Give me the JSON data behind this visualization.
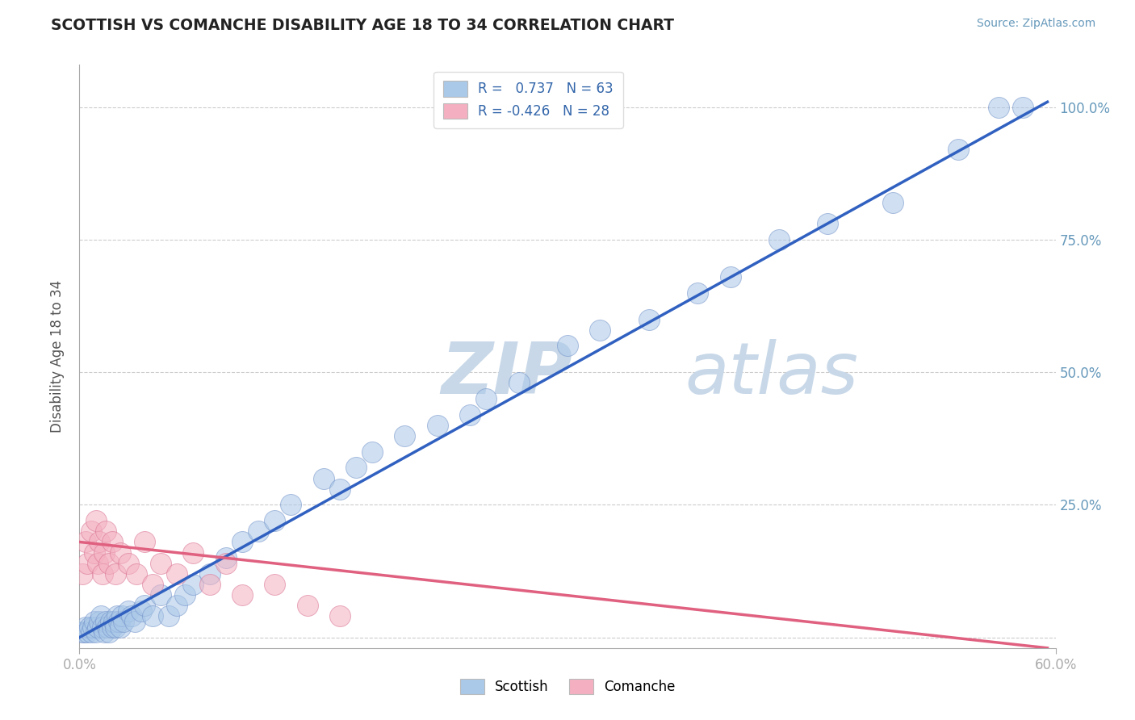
{
  "title": "SCOTTISH VS COMANCHE DISABILITY AGE 18 TO 34 CORRELATION CHART",
  "source_text": "Source: ZipAtlas.com",
  "ylabel": "Disability Age 18 to 34",
  "xlim": [
    0.0,
    0.6
  ],
  "ylim": [
    -0.02,
    1.08
  ],
  "ytick_values": [
    0.0,
    0.25,
    0.5,
    0.75,
    1.0
  ],
  "watermark": "ZIPatlas",
  "watermark_color": "#c8d8e8",
  "scottish_color": "#aac8e8",
  "comanche_color": "#f4b0c0",
  "scottish_edge_color": "#7090c8",
  "comanche_edge_color": "#d87090",
  "scottish_line_color": "#3060c0",
  "comanche_line_color": "#e06080",
  "grid_color": "#cccccc",
  "background_color": "#ffffff",
  "legend_scottish_label": "R =   0.737   N = 63",
  "legend_comanche_label": "R = -0.426   N = 28",
  "scottish_line_x": [
    0.0,
    0.595
  ],
  "scottish_line_y": [
    0.0,
    1.01
  ],
  "comanche_line_x": [
    0.0,
    0.595
  ],
  "comanche_line_y": [
    0.18,
    -0.02
  ],
  "scottish_scatter_x": [
    0.002,
    0.003,
    0.004,
    0.005,
    0.006,
    0.007,
    0.008,
    0.009,
    0.01,
    0.011,
    0.012,
    0.013,
    0.014,
    0.015,
    0.016,
    0.017,
    0.018,
    0.019,
    0.02,
    0.021,
    0.022,
    0.023,
    0.024,
    0.025,
    0.026,
    0.027,
    0.03,
    0.032,
    0.034,
    0.038,
    0.04,
    0.045,
    0.05,
    0.055,
    0.06,
    0.065,
    0.07,
    0.08,
    0.09,
    0.1,
    0.11,
    0.12,
    0.13,
    0.15,
    0.16,
    0.17,
    0.18,
    0.2,
    0.22,
    0.24,
    0.25,
    0.27,
    0.3,
    0.32,
    0.35,
    0.38,
    0.4,
    0.43,
    0.46,
    0.5,
    0.54,
    0.565,
    0.58
  ],
  "scottish_scatter_y": [
    0.01,
    0.01,
    0.02,
    0.01,
    0.02,
    0.01,
    0.02,
    0.03,
    0.01,
    0.02,
    0.03,
    0.04,
    0.02,
    0.01,
    0.03,
    0.02,
    0.01,
    0.03,
    0.02,
    0.03,
    0.02,
    0.04,
    0.03,
    0.02,
    0.04,
    0.03,
    0.05,
    0.04,
    0.03,
    0.05,
    0.06,
    0.04,
    0.08,
    0.04,
    0.06,
    0.08,
    0.1,
    0.12,
    0.15,
    0.18,
    0.2,
    0.22,
    0.25,
    0.3,
    0.28,
    0.32,
    0.35,
    0.38,
    0.4,
    0.42,
    0.45,
    0.48,
    0.55,
    0.58,
    0.6,
    0.65,
    0.68,
    0.75,
    0.78,
    0.82,
    0.92,
    1.0,
    1.0
  ],
  "comanche_scatter_x": [
    0.002,
    0.004,
    0.005,
    0.007,
    0.009,
    0.01,
    0.011,
    0.012,
    0.014,
    0.015,
    0.016,
    0.018,
    0.02,
    0.022,
    0.025,
    0.03,
    0.035,
    0.04,
    0.045,
    0.05,
    0.06,
    0.07,
    0.08,
    0.09,
    0.1,
    0.12,
    0.14,
    0.16
  ],
  "comanche_scatter_y": [
    0.12,
    0.18,
    0.14,
    0.2,
    0.16,
    0.22,
    0.14,
    0.18,
    0.12,
    0.16,
    0.2,
    0.14,
    0.18,
    0.12,
    0.16,
    0.14,
    0.12,
    0.18,
    0.1,
    0.14,
    0.12,
    0.16,
    0.1,
    0.14,
    0.08,
    0.1,
    0.06,
    0.04
  ]
}
